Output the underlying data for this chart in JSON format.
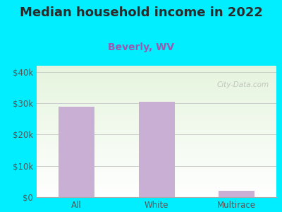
{
  "title": "Median household income in 2022",
  "subtitle": "Beverly, WV",
  "categories": [
    "All",
    "White",
    "Multirace"
  ],
  "values": [
    29000,
    30500,
    2000
  ],
  "bar_color": "#c9afd4",
  "title_color": "#2a2a2a",
  "subtitle_color": "#9b59b0",
  "bg_outer": "#00eeff",
  "yticks": [
    0,
    10000,
    20000,
    30000,
    40000
  ],
  "ytick_labels": [
    "$0",
    "$10k",
    "$20k",
    "$30k",
    "$40k"
  ],
  "ylim": [
    0,
    42000
  ],
  "title_fontsize": 13,
  "subtitle_fontsize": 10,
  "tick_fontsize": 8.5,
  "watermark": "City-Data.com"
}
